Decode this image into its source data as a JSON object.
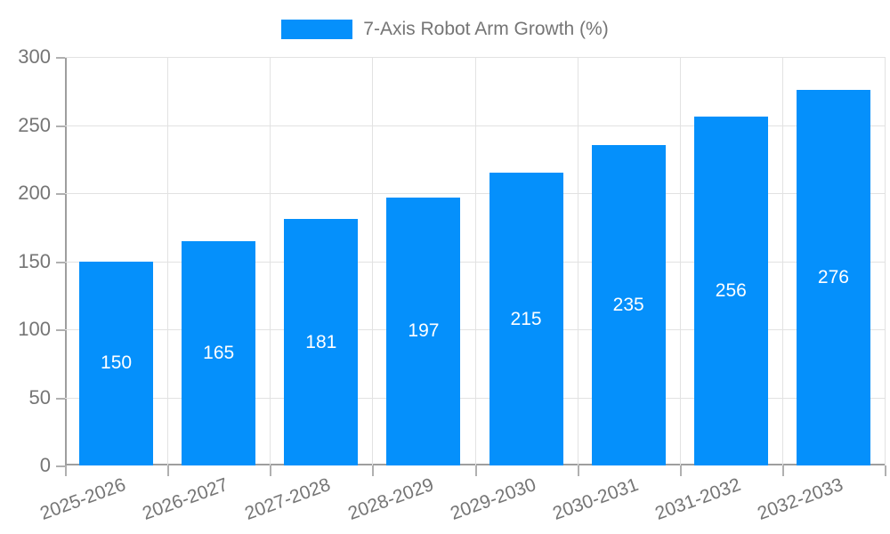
{
  "legend": {
    "label": "7-Axis Robot Arm Growth (%)",
    "swatch_color": "#0590fb"
  },
  "chart_data": {
    "type": "bar",
    "title": "7-Axis Robot Arm Growth (%)",
    "categories": [
      "2025-2026",
      "2026-2027",
      "2027-2028",
      "2028-2029",
      "2029-2030",
      "2030-2031",
      "2031-2032",
      "2032-2033"
    ],
    "series": [
      {
        "name": "7-Axis Robot Arm Growth (%)",
        "values": [
          150,
          165,
          181,
          197,
          215,
          235,
          256,
          276
        ]
      }
    ],
    "value_labels": [
      "150",
      "165",
      "181",
      "197",
      "215",
      "235",
      "256",
      "276"
    ],
    "value_label_position": "inside-center",
    "xlabel": "",
    "ylabel": "",
    "ylim": [
      0,
      300
    ],
    "ytick_step": 50,
    "ytick_labels": [
      "0",
      "50",
      "100",
      "150",
      "200",
      "250",
      "300"
    ],
    "grid": true,
    "legend_position": "top-center",
    "bar_color": "#0590fb",
    "value_label_color": "#ffffff",
    "axis_text_color": "#757575",
    "axis_line_color": "#9e9e9e",
    "gridline_color": "#e2e2e2"
  }
}
